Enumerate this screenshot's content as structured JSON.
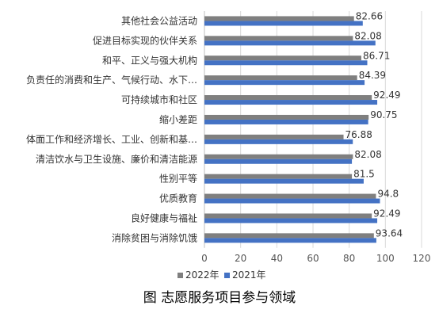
{
  "chart_data": {
    "type": "bar",
    "orientation": "horizontal",
    "title": "",
    "caption": "图 志愿服务项目参与领域",
    "categories": [
      "其他社会公益活动",
      "促进目标实现的伙伴关系",
      "和平、正义与强大机构",
      "负责任的消费和生产、气候行动、水下…",
      "可持续城市和社区",
      "缩小差距",
      "体面工作和经济增长、工业、创新和基…",
      "清洁饮水与卫生设施、廉价和清洁能源",
      "性别平等",
      "优质教育",
      "良好健康与福祉",
      "消除贫困与消除饥饿"
    ],
    "series": [
      {
        "name": "2022年",
        "color": "#7f7f7f",
        "values": [
          82.66,
          82.08,
          86.71,
          84.39,
          92.49,
          90.75,
          76.88,
          82.08,
          81.5,
          94.8,
          92.49,
          93.64
        ]
      },
      {
        "name": "2021年",
        "color": "#4472c4",
        "values": [
          87.5,
          94.5,
          90.0,
          88.5,
          95.5,
          90.5,
          82.0,
          81.5,
          88.0,
          97.0,
          95.5,
          95.0
        ]
      }
    ],
    "data_labels": [
      "82.66",
      "82.08",
      "86.71",
      "84.39",
      "92.49",
      "90.75",
      "76.88",
      "82.08",
      "81.5",
      "94.8",
      "92.49",
      "93.64"
    ],
    "xlim": [
      0,
      120
    ],
    "xticks": [
      0,
      20,
      40,
      60,
      80,
      100,
      120
    ],
    "tick_labels": [
      "0",
      "20",
      "40",
      "60",
      "80",
      "100",
      "120"
    ],
    "grid": true,
    "legend_position": "bottom"
  }
}
